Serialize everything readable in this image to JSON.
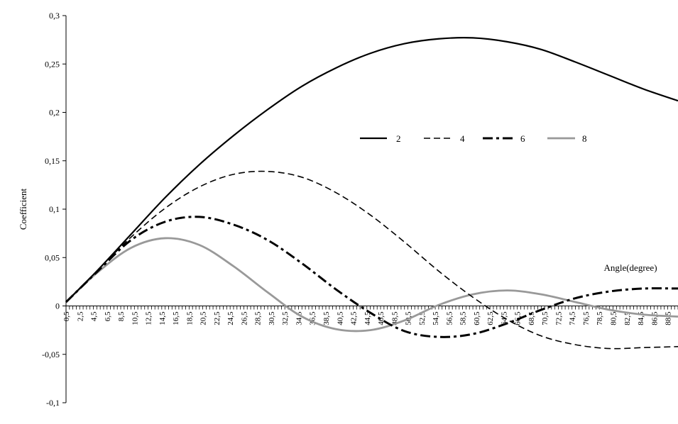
{
  "chart_data": {
    "type": "line",
    "title": "",
    "xlabel": "Angle(degree)",
    "ylabel": "Coefficient",
    "ylim": [
      -0.1,
      0.3
    ],
    "yticks": [
      -0.1,
      -0.05,
      0,
      0.05,
      0.1,
      0.15,
      0.2,
      0.25,
      0.3
    ],
    "ytick_labels": [
      "-0,1",
      "-0,05",
      "0",
      "0,05",
      "0,1",
      "0,15",
      "0,2",
      "0,25",
      "0,3"
    ],
    "x_range": [
      0.5,
      90
    ],
    "xtick_labels": [
      "0,5",
      "2,5",
      "4,5",
      "6,5",
      "8,5",
      "10,5",
      "12,5",
      "14,5",
      "16,5",
      "18,5",
      "20,5",
      "22,5",
      "24,5",
      "26,5",
      "28,5",
      "30,5",
      "32,5",
      "34,5",
      "36,5",
      "38,5",
      "40,5",
      "42,5",
      "44,5",
      "46,5",
      "48,5",
      "50,5",
      "52,5",
      "54,5",
      "56,5",
      "58,5",
      "60,5",
      "62,5",
      "64,5",
      "66,5",
      "68,5",
      "70,5",
      "72,5",
      "74,5",
      "76,5",
      "78,5",
      "80,5",
      "82,5",
      "84,5",
      "86,5",
      "88,5"
    ],
    "grid": false,
    "legend_position": "center-right",
    "series": [
      {
        "name": "2",
        "line_style": "solid",
        "color": "#000000",
        "points": [
          [
            0.5,
            0.004
          ],
          [
            5,
            0.036
          ],
          [
            10,
            0.074
          ],
          [
            15,
            0.112
          ],
          [
            20,
            0.146
          ],
          [
            25,
            0.176
          ],
          [
            30,
            0.203
          ],
          [
            35,
            0.227
          ],
          [
            40,
            0.246
          ],
          [
            45,
            0.261
          ],
          [
            50,
            0.271
          ],
          [
            55,
            0.276
          ],
          [
            60,
            0.277
          ],
          [
            65,
            0.273
          ],
          [
            70,
            0.265
          ],
          [
            75,
            0.252
          ],
          [
            80,
            0.238
          ],
          [
            85,
            0.224
          ],
          [
            90,
            0.212
          ]
        ]
      },
      {
        "name": "4",
        "line_style": "dashed",
        "color": "#000000",
        "points": [
          [
            0.5,
            0.004
          ],
          [
            5,
            0.036
          ],
          [
            10,
            0.071
          ],
          [
            15,
            0.101
          ],
          [
            20,
            0.123
          ],
          [
            25,
            0.136
          ],
          [
            30,
            0.139
          ],
          [
            35,
            0.133
          ],
          [
            40,
            0.117
          ],
          [
            45,
            0.094
          ],
          [
            50,
            0.066
          ],
          [
            55,
            0.036
          ],
          [
            60,
            0.009
          ],
          [
            65,
            -0.014
          ],
          [
            70,
            -0.031
          ],
          [
            75,
            -0.04
          ],
          [
            80,
            -0.044
          ],
          [
            85,
            -0.043
          ],
          [
            90,
            -0.042
          ]
        ]
      },
      {
        "name": "6",
        "line_style": "dash-dot",
        "color": "#000000",
        "points": [
          [
            0.5,
            0.004
          ],
          [
            5,
            0.035
          ],
          [
            10,
            0.068
          ],
          [
            15,
            0.087
          ],
          [
            20,
            0.092
          ],
          [
            25,
            0.084
          ],
          [
            30,
            0.068
          ],
          [
            35,
            0.044
          ],
          [
            40,
            0.017
          ],
          [
            45,
            -0.007
          ],
          [
            50,
            -0.026
          ],
          [
            55,
            -0.032
          ],
          [
            60,
            -0.029
          ],
          [
            65,
            -0.018
          ],
          [
            70,
            -0.004
          ],
          [
            75,
            0.008
          ],
          [
            80,
            0.015
          ],
          [
            85,
            0.018
          ],
          [
            90,
            0.018
          ]
        ]
      },
      {
        "name": "8",
        "line_style": "solid-gray",
        "color": "#999999",
        "points": [
          [
            0.5,
            0.004
          ],
          [
            5,
            0.034
          ],
          [
            10,
            0.06
          ],
          [
            15,
            0.07
          ],
          [
            20,
            0.063
          ],
          [
            25,
            0.041
          ],
          [
            30,
            0.014
          ],
          [
            35,
            -0.011
          ],
          [
            40,
            -0.024
          ],
          [
            45,
            -0.025
          ],
          [
            50,
            -0.015
          ],
          [
            55,
            0.001
          ],
          [
            60,
            0.012
          ],
          [
            65,
            0.016
          ],
          [
            70,
            0.012
          ],
          [
            75,
            0.004
          ],
          [
            80,
            -0.004
          ],
          [
            85,
            -0.009
          ],
          [
            90,
            -0.011
          ]
        ]
      }
    ]
  }
}
